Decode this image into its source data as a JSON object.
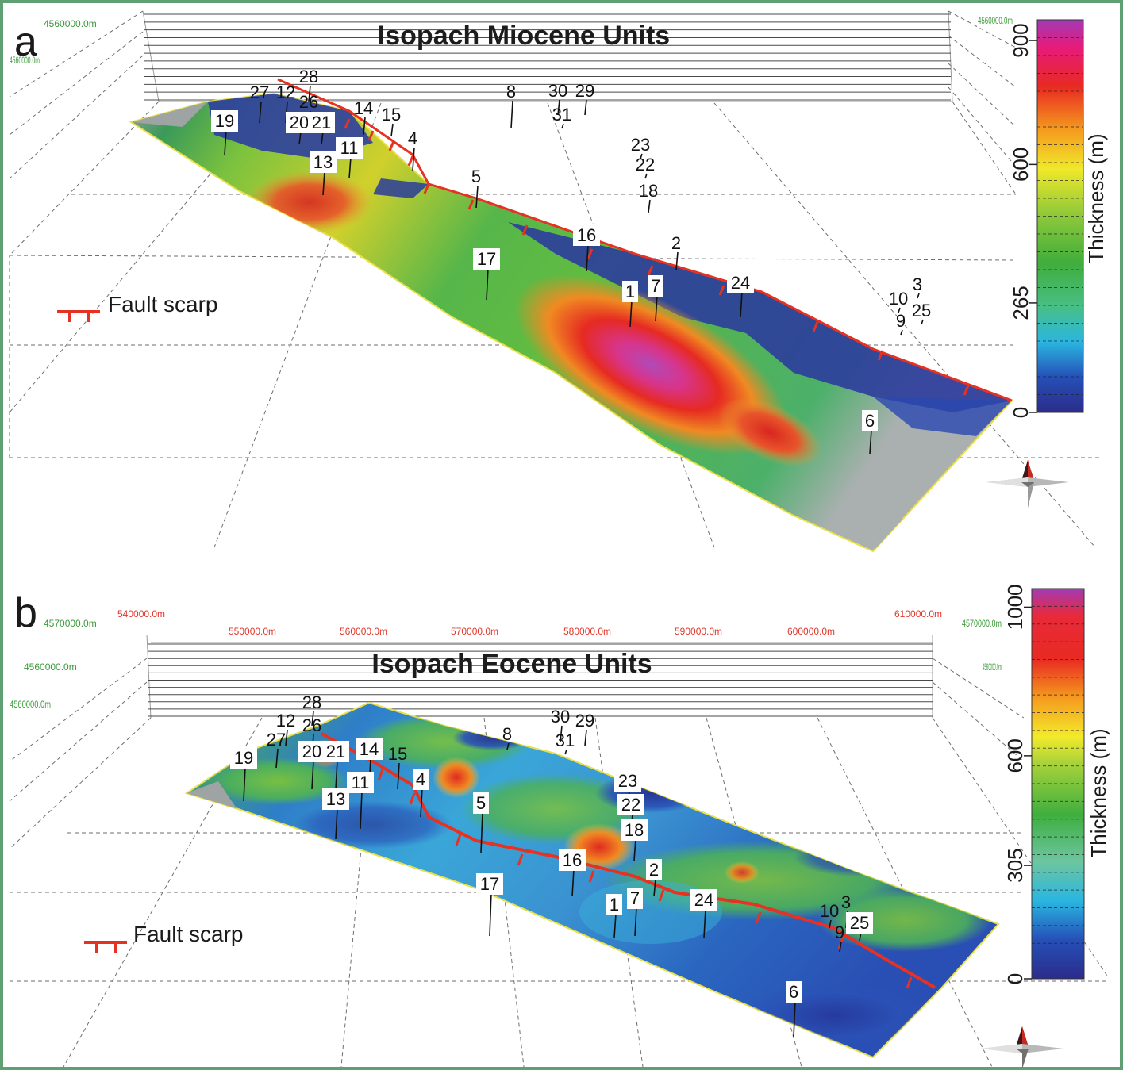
{
  "panels": [
    {
      "letter": "a",
      "title": "Isopach Miocene Units",
      "axis_labels": [
        "4560000.0m",
        "4560000.0m",
        "4560000.0m"
      ],
      "colorbar": {
        "title": "Thickness (m)",
        "ticks": [
          "0",
          "265",
          "600",
          "900"
        ],
        "max": 950
      },
      "legend": "Fault scarp",
      "wells": [
        "19",
        "27",
        "12",
        "28",
        "26",
        "20",
        "21",
        "14",
        "15",
        "11",
        "13",
        "4",
        "5",
        "8",
        "30",
        "29",
        "31",
        "23",
        "22",
        "18",
        "16",
        "2",
        "17",
        "1",
        "7",
        "24",
        "3",
        "10",
        "25",
        "9",
        "6"
      ]
    },
    {
      "letter": "b",
      "title": "Isopach Eocene Units",
      "axis_labels": [
        "4570000.0m",
        "540000.0m",
        "550000.0m",
        "560000.0m",
        "570000.0m",
        "580000.0m",
        "590000.0m",
        "600000.0m",
        "610000.0m",
        "4570000.0m",
        "4560000.0m",
        "4560000.0m",
        "4560000.0m"
      ],
      "colorbar": {
        "title": "Thickness (m)",
        "ticks": [
          "0",
          "305",
          "600",
          "1000"
        ],
        "max": 1050
      },
      "legend": "Fault scarp",
      "wells": [
        "28",
        "12",
        "27",
        "26",
        "19",
        "20",
        "21",
        "14",
        "15",
        "11",
        "13",
        "4",
        "8",
        "30",
        "29",
        "31",
        "5",
        "23",
        "22",
        "18",
        "16",
        "2",
        "17",
        "1",
        "7",
        "24",
        "10",
        "3",
        "9",
        "25",
        "6"
      ]
    }
  ],
  "colors": {
    "frame": "#5e9f73",
    "fault": "#e53222",
    "axis_red": "#e0382c",
    "axis_green": "#3a9a3a"
  }
}
